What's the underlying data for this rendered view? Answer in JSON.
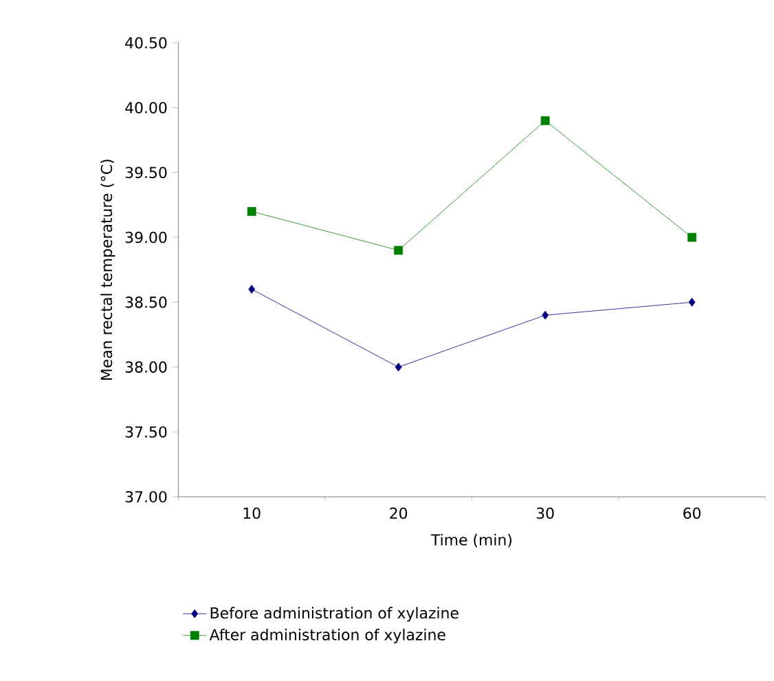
{
  "chart_data": {
    "type": "line",
    "xlabel": "Time (min)",
    "ylabel": "Mean rectal temperature (°C)",
    "categories": [
      "10",
      "20",
      "30",
      "60"
    ],
    "series": [
      {
        "name": "Before administration of xylazine",
        "color": "#000080",
        "marker": "diamond",
        "values": [
          38.6,
          38.0,
          38.4,
          38.5
        ]
      },
      {
        "name": "After administration of xylazine",
        "color": "#008000",
        "marker": "square",
        "values": [
          39.2,
          38.9,
          39.9,
          39.0
        ]
      }
    ],
    "ylim": [
      37.0,
      40.5
    ],
    "yticks": [
      {
        "value": 37.0,
        "label": "37.00"
      },
      {
        "value": 37.5,
        "label": "37.50"
      },
      {
        "value": 38.0,
        "label": "38.00"
      },
      {
        "value": 38.5,
        "label": "38.50"
      },
      {
        "value": 39.0,
        "label": "39.00"
      },
      {
        "value": 39.5,
        "label": "39.50"
      },
      {
        "value": 40.0,
        "label": "40.00"
      },
      {
        "value": 40.5,
        "label": "40.50"
      }
    ],
    "grid": false,
    "legend": "bottom",
    "line_style": "solid"
  }
}
